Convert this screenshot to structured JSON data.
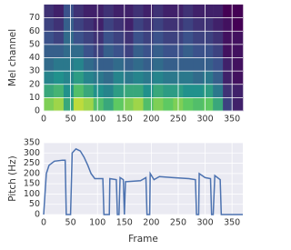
{
  "chart_data": [
    {
      "type": "heatmap",
      "ylabel": "Mel channel",
      "x_edges": [
        0,
        18.5,
        37,
        55.5,
        74,
        92.5,
        111,
        129.5,
        148,
        166.5,
        185,
        203.5,
        222,
        240.5,
        259,
        277.5,
        296,
        314.5,
        333,
        351.5,
        370
      ],
      "y_edges": [
        0,
        10,
        20,
        30,
        40,
        50,
        60,
        70,
        80
      ],
      "z": [
        [
          0.8,
          0.85,
          0.6,
          0.9,
          0.85,
          0.7,
          0.6,
          0.75,
          0.8,
          0.85,
          0.7,
          0.8,
          0.75,
          0.8,
          0.75,
          0.7,
          0.75,
          0.6,
          0.2,
          0.1
        ],
        [
          0.6,
          0.65,
          0.5,
          0.7,
          0.6,
          0.5,
          0.45,
          0.55,
          0.6,
          0.6,
          0.5,
          0.6,
          0.55,
          0.55,
          0.5,
          0.5,
          0.55,
          0.4,
          0.15,
          0.1
        ],
        [
          0.45,
          0.5,
          0.45,
          0.55,
          0.45,
          0.4,
          0.35,
          0.45,
          0.4,
          0.45,
          0.4,
          0.45,
          0.4,
          0.4,
          0.4,
          0.35,
          0.4,
          0.3,
          0.1,
          0.05
        ],
        [
          0.35,
          0.4,
          0.4,
          0.45,
          0.35,
          0.3,
          0.3,
          0.35,
          0.3,
          0.35,
          0.3,
          0.35,
          0.3,
          0.3,
          0.3,
          0.3,
          0.3,
          0.25,
          0.1,
          0.05
        ],
        [
          0.3,
          0.3,
          0.35,
          0.35,
          0.25,
          0.2,
          0.3,
          0.25,
          0.2,
          0.3,
          0.25,
          0.3,
          0.25,
          0.25,
          0.3,
          0.25,
          0.25,
          0.2,
          0.05,
          0.05
        ],
        [
          0.25,
          0.2,
          0.35,
          0.25,
          0.2,
          0.15,
          0.25,
          0.2,
          0.15,
          0.25,
          0.2,
          0.25,
          0.2,
          0.2,
          0.25,
          0.2,
          0.2,
          0.15,
          0.05,
          0.05
        ],
        [
          0.2,
          0.15,
          0.3,
          0.2,
          0.15,
          0.1,
          0.2,
          0.15,
          0.1,
          0.2,
          0.15,
          0.2,
          0.15,
          0.15,
          0.2,
          0.15,
          0.15,
          0.1,
          0.05,
          0
        ],
        [
          0.15,
          0.1,
          0.25,
          0.15,
          0.1,
          0.1,
          0.15,
          0.1,
          0.1,
          0.15,
          0.1,
          0.15,
          0.1,
          0.1,
          0.15,
          0.1,
          0.1,
          0.1,
          0,
          0
        ]
      ],
      "colormap": "viridis",
      "xlim": [
        0,
        370
      ],
      "xticks": [
        0,
        50,
        100,
        150,
        200,
        250,
        300,
        350
      ],
      "ylim": [
        0,
        80
      ],
      "yticks": [
        0,
        10,
        20,
        30,
        40,
        50,
        60,
        70
      ],
      "grid": true
    },
    {
      "type": "line",
      "xlabel": "Frame",
      "ylabel": "Pitch (Hz)",
      "color": "#4c72b0",
      "x": [
        0,
        5,
        10,
        20,
        35,
        40,
        42,
        50,
        53,
        60,
        68,
        75,
        82,
        88,
        95,
        110,
        112,
        122,
        123,
        135,
        137,
        140,
        142,
        148,
        150,
        152,
        180,
        190,
        192,
        197,
        198,
        205,
        215,
        240,
        270,
        282,
        284,
        288,
        289,
        300,
        310,
        312,
        315,
        318,
        328,
        330,
        370
      ],
      "values": [
        0,
        200,
        240,
        260,
        265,
        265,
        0,
        0,
        300,
        320,
        310,
        280,
        240,
        200,
        175,
        175,
        0,
        0,
        175,
        170,
        0,
        0,
        180,
        170,
        0,
        160,
        165,
        180,
        0,
        0,
        200,
        170,
        185,
        180,
        175,
        170,
        0,
        0,
        200,
        180,
        175,
        0,
        0,
        190,
        170,
        0,
        0
      ],
      "xlim": [
        0,
        370
      ],
      "xticks": [
        0,
        50,
        100,
        150,
        200,
        250,
        300,
        350
      ],
      "ylim": [
        0,
        350
      ],
      "yticks": [
        0,
        50,
        100,
        150,
        200,
        250,
        300,
        350
      ],
      "grid": true
    }
  ]
}
